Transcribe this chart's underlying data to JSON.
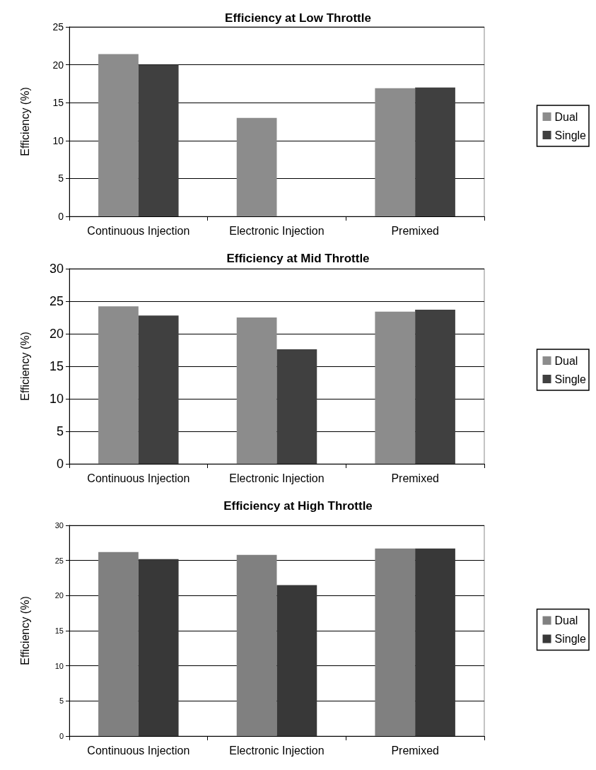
{
  "chart_data": [
    {
      "type": "bar",
      "title": "Efficiency at Low Throttle",
      "ylabel": "Efficiency (%)",
      "categories": [
        "Continuous Injection",
        "Electronic Injection",
        "Premixed"
      ],
      "series": [
        {
          "name": "Dual",
          "color": "#8c8c8c",
          "values": [
            21.4,
            13.0,
            16.9
          ]
        },
        {
          "name": "Single",
          "color": "#404040",
          "values": [
            20.0,
            null,
            17.0
          ]
        }
      ],
      "ylim": [
        0,
        25
      ],
      "yticks": [
        0,
        5,
        10,
        15,
        20,
        25
      ],
      "grid": "y",
      "legend": "right"
    },
    {
      "type": "bar",
      "title": "Efficiency at Mid Throttle",
      "ylabel": "Efficiency (%)",
      "categories": [
        "Continuous Injection",
        "Electronic Injection",
        "Premixed"
      ],
      "series": [
        {
          "name": "Dual",
          "color": "#8c8c8c",
          "values": [
            24.2,
            22.5,
            23.4
          ]
        },
        {
          "name": "Single",
          "color": "#404040",
          "values": [
            22.8,
            17.6,
            23.7
          ]
        }
      ],
      "ylim": [
        0,
        30
      ],
      "yticks": [
        0,
        5,
        10,
        15,
        20,
        25,
        30
      ],
      "grid": "y",
      "legend": "right"
    },
    {
      "type": "bar",
      "title": "Efficiency at High Throttle",
      "ylabel": "Efficiency (%)",
      "categories": [
        "Continuous Injection",
        "Electronic Injection",
        "Premixed"
      ],
      "series": [
        {
          "name": "Dual",
          "color": "#808080",
          "values": [
            26.2,
            25.8,
            26.7
          ]
        },
        {
          "name": "Single",
          "color": "#383838",
          "values": [
            25.2,
            21.5,
            26.7
          ]
        }
      ],
      "ylim": [
        0,
        30
      ],
      "yticks": [
        0,
        5,
        10,
        15,
        20,
        25,
        30
      ],
      "grid": "y",
      "legend": "right"
    }
  ]
}
